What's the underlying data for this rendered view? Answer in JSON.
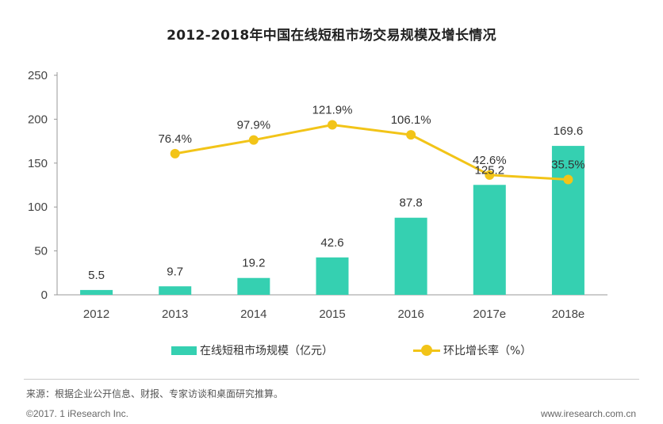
{
  "chart_data": {
    "type": "bar",
    "title": "2012-2018年中国在线短租市场交易规模及增长情况",
    "categories": [
      "2012",
      "2013",
      "2014",
      "2015",
      "2016",
      "2017e",
      "2018e"
    ],
    "ylim": [
      0,
      250
    ],
    "yticks": [
      "0",
      "50",
      "100",
      "150",
      "200",
      "250"
    ],
    "grid": false,
    "legend_position": "bottom",
    "series": [
      {
        "name": "在线短租市场规模（亿元）",
        "type": "bar",
        "values": [
          5.5,
          9.7,
          19.2,
          42.6,
          87.8,
          125.2,
          169.6
        ],
        "labels": [
          "5.5",
          "9.7",
          "19.2",
          "42.6",
          "87.8",
          "125.2",
          "169.6"
        ],
        "color": "#35d0b1"
      },
      {
        "name": "环比增长率（%）",
        "type": "line",
        "values": [
          null,
          76.4,
          97.9,
          121.9,
          106.1,
          42.6,
          35.5
        ],
        "labels": [
          "",
          "76.4%",
          "97.9%",
          "121.9%",
          "106.1%",
          "42.6%",
          "35.5%"
        ],
        "color": "#f2c418"
      }
    ]
  },
  "legend": {
    "bar_label": "在线短租市场规模（亿元）",
    "line_label": "环比增长率（%）"
  },
  "source": "来源：根据企业公开信息、财报、专家访谈和桌面研究推算。",
  "footer": {
    "copyright": "©2017. 1 iResearch Inc.",
    "website": "www.iresearch.com.cn"
  }
}
